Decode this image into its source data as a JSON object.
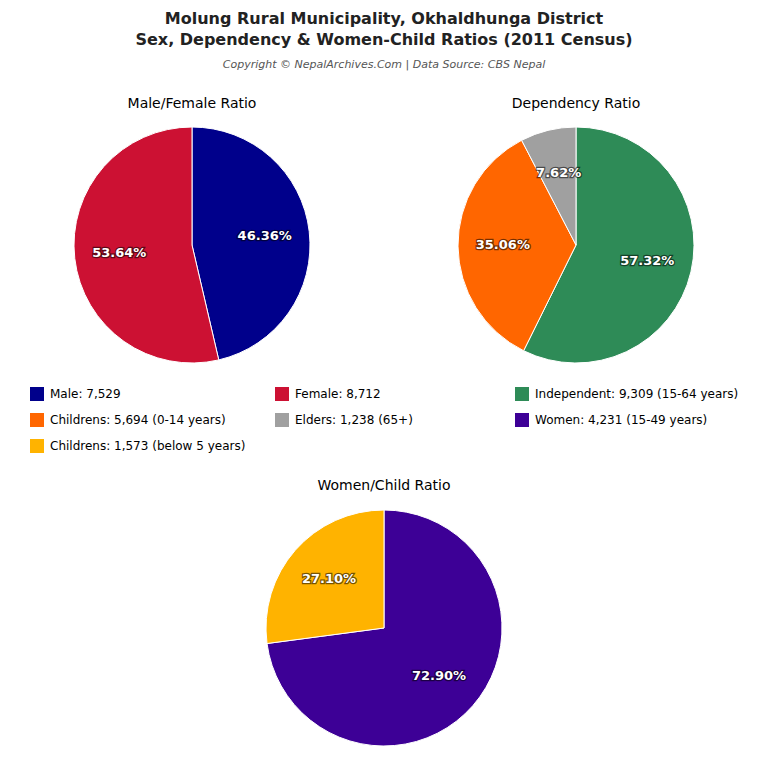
{
  "title": [
    "Molung Rural Municipality, Okhaldhunga District",
    "Sex, Dependency & Women-Child Ratios (2011 Census)"
  ],
  "subtitle": "Copyright © NepalArchives.Com | Data Source: CBS Nepal",
  "chart_data": [
    {
      "type": "pie",
      "title": "Male/Female Ratio",
      "categories": [
        "Male: 7,529",
        "Female: 8,712"
      ],
      "values": [
        46.36,
        53.64
      ],
      "value_labels": [
        "46.36%",
        "53.64%"
      ],
      "colors": [
        "#00008B",
        "#CC1133"
      ],
      "data_labels": true,
      "legend": "bottom"
    },
    {
      "type": "pie",
      "title": "Dependency Ratio",
      "categories": [
        "Independent: 9,309 (15-64 years)",
        "Childrens: 5,694 (0-14 years)",
        "Elders: 1,238 (65+)"
      ],
      "values": [
        57.32,
        35.06,
        7.62
      ],
      "value_labels": [
        "57.32%",
        "35.06%",
        "7.62%"
      ],
      "colors": [
        "#2E8B57",
        "#FF6600",
        "#A0A0A0"
      ],
      "data_labels": true,
      "legend": "bottom"
    },
    {
      "type": "pie",
      "title": "Women/Child Ratio",
      "categories": [
        "Women: 4,231 (15-49 years)",
        "Childrens: 1,573 (below 5 years)"
      ],
      "values": [
        72.9,
        27.1
      ],
      "value_labels": [
        "72.90%",
        "27.10%"
      ],
      "colors": [
        "#3D0096",
        "#FFB300"
      ],
      "data_labels": true,
      "legend": "top"
    }
  ]
}
